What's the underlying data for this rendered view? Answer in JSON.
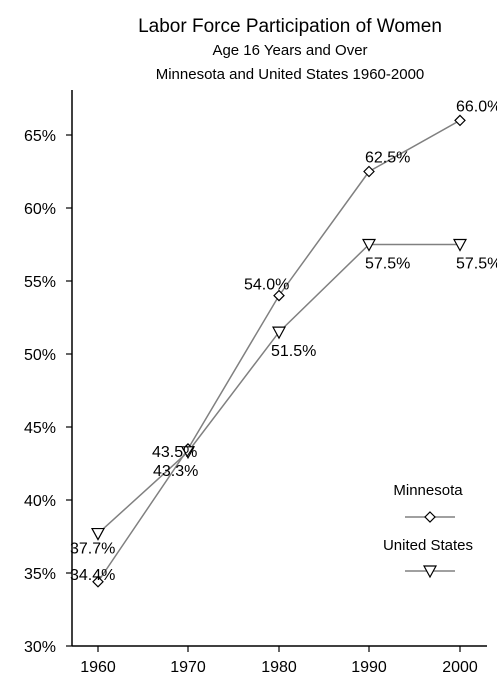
{
  "chart_data": {
    "type": "line",
    "title": "Labor Force Participation of Women",
    "subtitle_lines": [
      "Age 16 Years and Over",
      "Minnesota and United States 1960-2000"
    ],
    "xlabel": "",
    "ylabel": "",
    "x": [
      1960,
      1970,
      1980,
      1990,
      2000
    ],
    "x_tick_labels": [
      "1960",
      "1970",
      "1980",
      "1990",
      "2000"
    ],
    "ylim": [
      30,
      66
    ],
    "y_ticks": [
      30,
      35,
      40,
      45,
      50,
      55,
      60,
      65
    ],
    "y_tick_labels": [
      "30%",
      "35%",
      "40%",
      "45%",
      "50%",
      "55%",
      "60%",
      "65%"
    ],
    "grid": false,
    "legend_position": "bottom-right",
    "series": [
      {
        "name": "Minnesota",
        "marker": "diamond",
        "color": "#808080",
        "values": [
          34.4,
          43.5,
          54.0,
          62.5,
          66.0
        ],
        "labels": [
          "34.4%",
          "43.5%",
          "54.0%",
          "62.5%",
          "66.0%"
        ]
      },
      {
        "name": "United States",
        "marker": "triangle-down",
        "color": "#808080",
        "values": [
          37.7,
          43.3,
          51.5,
          57.5,
          57.5
        ],
        "labels": [
          "37.7%",
          "43.3%",
          "51.5%",
          "57.5%",
          "57.5%"
        ]
      }
    ]
  }
}
